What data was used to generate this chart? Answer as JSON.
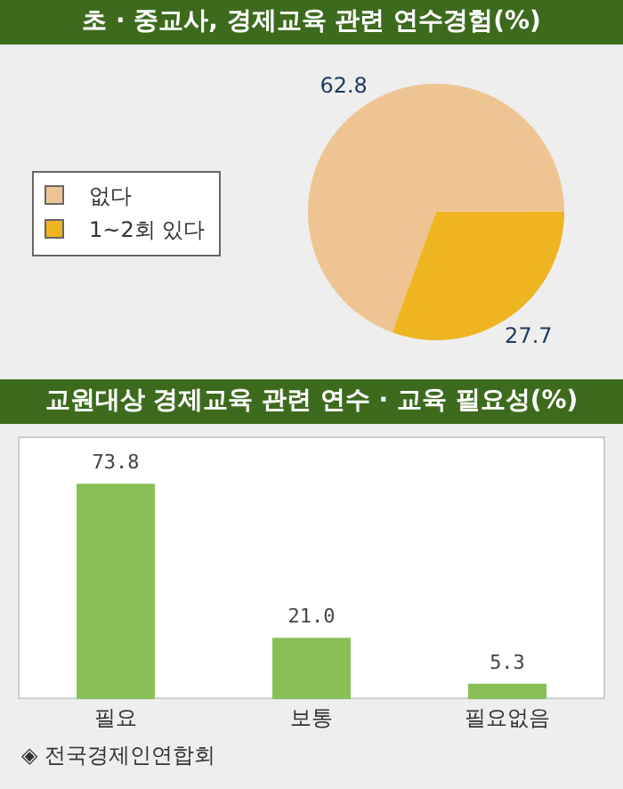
{
  "chart_data": [
    {
      "type": "pie",
      "title": "초 · 중교사, 경제교육 관련 연수경험(%)",
      "categories": [
        "없다",
        "1~2회 있다"
      ],
      "values": [
        62.8,
        27.7
      ],
      "colors": [
        "#eec592",
        "#eeb422"
      ],
      "legend": "left",
      "data_labels": true
    },
    {
      "type": "bar",
      "title": "교원대상 경제교육 관련 연수 · 교육 필요성(%)",
      "categories": [
        "필요",
        "보통",
        "필요없음"
      ],
      "values": [
        73.8,
        21.0,
        5.3
      ],
      "value_labels": [
        "73.8",
        "21.0",
        "5.3"
      ],
      "color": "#88c057",
      "grid": false,
      "annotations": [
        "◈ 전국경제인연합회"
      ]
    }
  ]
}
